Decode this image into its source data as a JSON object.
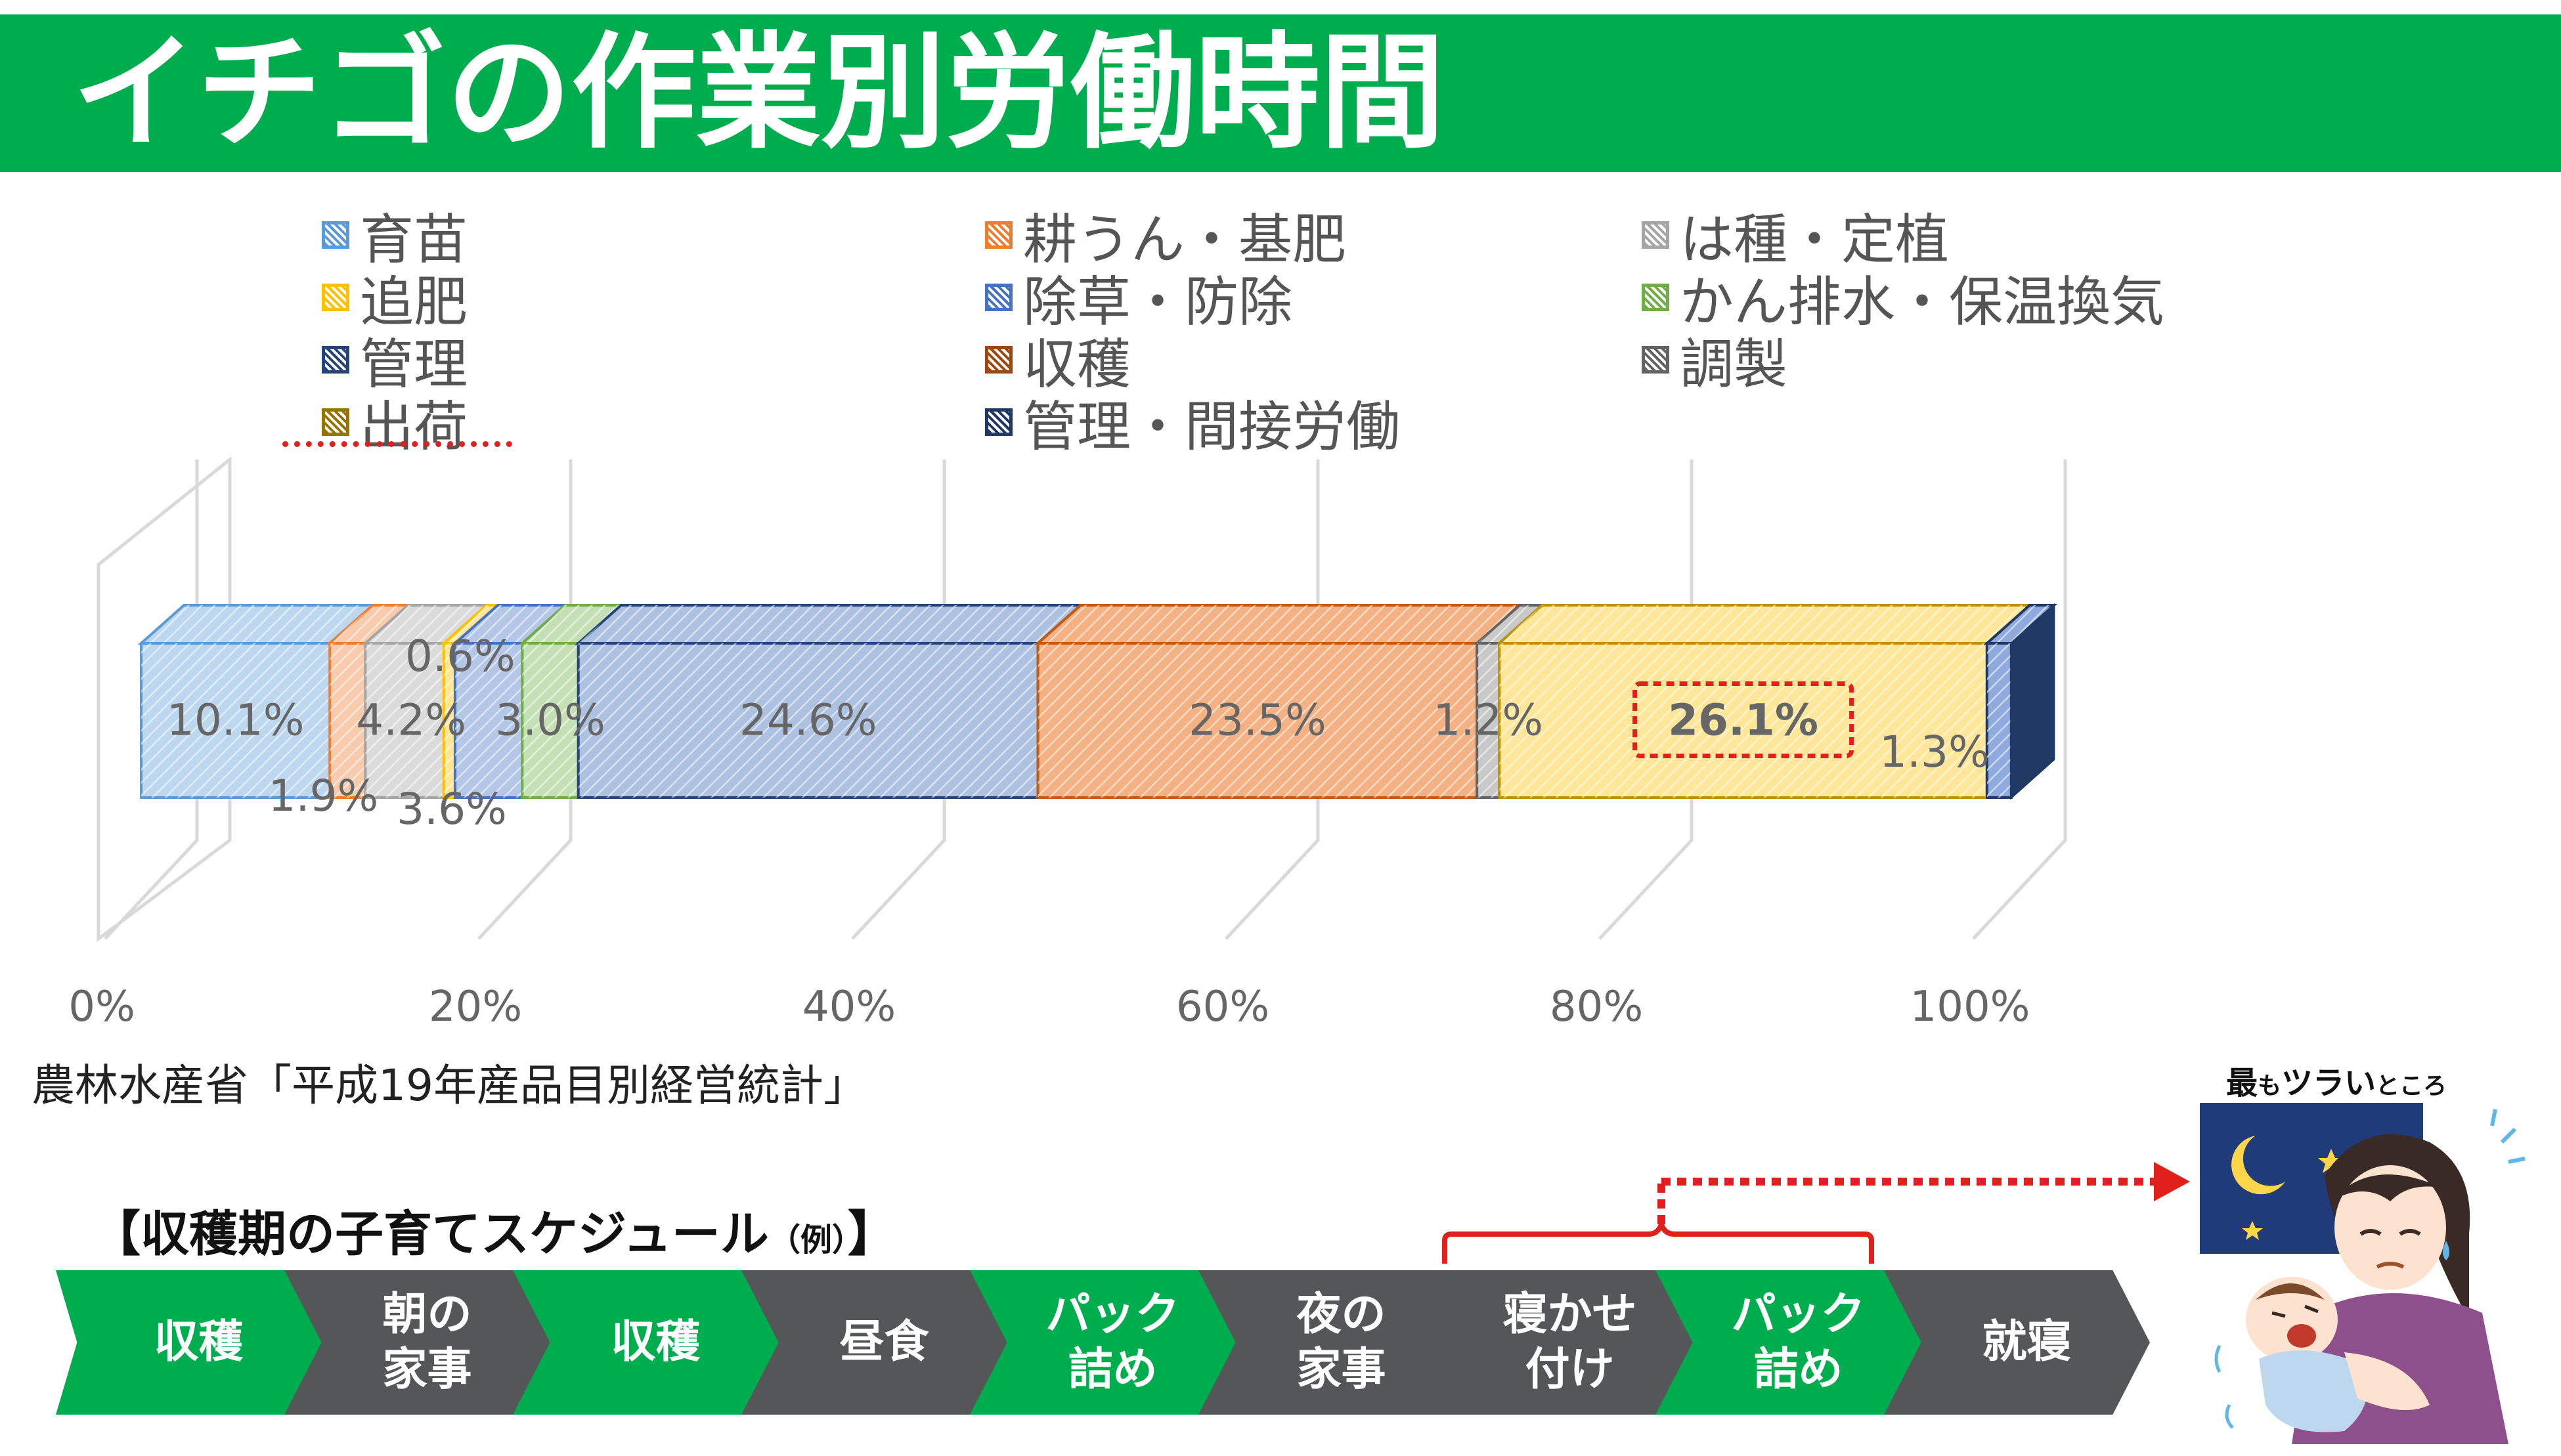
{
  "title": "イチゴの作業別労働時間",
  "legend": [
    {
      "label": "育苗",
      "color": "#5b9bd5"
    },
    {
      "label": "耕うん・基肥",
      "color": "#ed7d31"
    },
    {
      "label": "は種・定植",
      "color": "#a5a5a5"
    },
    {
      "label": "追肥",
      "color": "#ffc000"
    },
    {
      "label": "除草・防除",
      "color": "#4472c4"
    },
    {
      "label": "かん排水・保温換気",
      "color": "#70ad47"
    },
    {
      "label": "管理",
      "color": "#264478"
    },
    {
      "label": "収穫",
      "color": "#9e480e"
    },
    {
      "label": "調製",
      "color": "#636363"
    },
    {
      "label": "出荷",
      "color": "#997300"
    },
    {
      "label": "管理・間接労働",
      "color": "#1f3864"
    }
  ],
  "chart_data": {
    "type": "bar",
    "orientation": "horizontal-stacked-100",
    "series": [
      {
        "name": "育苗",
        "values": [
          10.1
        ],
        "color": "#bdd7ee",
        "edge": "#5b9bd5"
      },
      {
        "name": "耕うん・基肥",
        "values": [
          1.9
        ],
        "color": "#f8cbad",
        "edge": "#ed7d31"
      },
      {
        "name": "は種・定植",
        "values": [
          4.2
        ],
        "color": "#dbdbdb",
        "edge": "#a5a5a5"
      },
      {
        "name": "追肥",
        "values": [
          0.6
        ],
        "color": "#ffe699",
        "edge": "#ffc000"
      },
      {
        "name": "除草・防除",
        "values": [
          3.6
        ],
        "color": "#b4c7e7",
        "edge": "#4472c4"
      },
      {
        "name": "かん排水・保温換気",
        "values": [
          3.0
        ],
        "color": "#c5e0b4",
        "edge": "#70ad47"
      },
      {
        "name": "管理",
        "values": [
          24.6
        ],
        "color": "#adc1e0",
        "edge": "#264478"
      },
      {
        "name": "収穫",
        "values": [
          23.5
        ],
        "color": "#f4b183",
        "edge": "#c55a11"
      },
      {
        "name": "調製",
        "values": [
          1.2
        ],
        "color": "#c9c9c9",
        "edge": "#636363"
      },
      {
        "name": "出荷",
        "values": [
          26.1
        ],
        "color": "#ffe699",
        "edge": "#bf9000",
        "highlight": true
      },
      {
        "name": "管理・間接労働",
        "values": [
          1.3
        ],
        "color": "#8faadc",
        "edge": "#1f3864"
      }
    ],
    "data_labels": [
      "10.1%",
      "1.9%",
      "4.2%",
      "0.6%",
      "3.6%",
      "3.0%",
      "24.6%",
      "23.5%",
      "1.2%",
      "26.1%",
      "1.3%"
    ],
    "x_ticks": [
      "0%",
      "20%",
      "40%",
      "60%",
      "80%",
      "100%"
    ],
    "xlim": [
      0,
      100
    ],
    "grid": true,
    "legend_position": "top"
  },
  "source": "農林水産省「平成19年産品目別経営統計」",
  "schedule": {
    "title": "【収穫期の子育てスケジュール",
    "title_small": "（例）",
    "title_end": "】",
    "steps": [
      {
        "label": "収穫",
        "color": "green"
      },
      {
        "label": "朝の\n家事",
        "color": "gray"
      },
      {
        "label": "収穫",
        "color": "green"
      },
      {
        "label": "昼食",
        "color": "gray"
      },
      {
        "label": "パック\n詰め",
        "color": "green"
      },
      {
        "label": "夜の\n家事",
        "color": "gray"
      },
      {
        "label": "寝かせ\n付け",
        "color": "gray"
      },
      {
        "label": "パック\n詰め",
        "color": "green"
      },
      {
        "label": "就寝",
        "color": "gray"
      }
    ]
  },
  "worst_label": {
    "main1": "最",
    "small1": "も",
    "main2": "ツラい",
    "small2": "ところ"
  }
}
